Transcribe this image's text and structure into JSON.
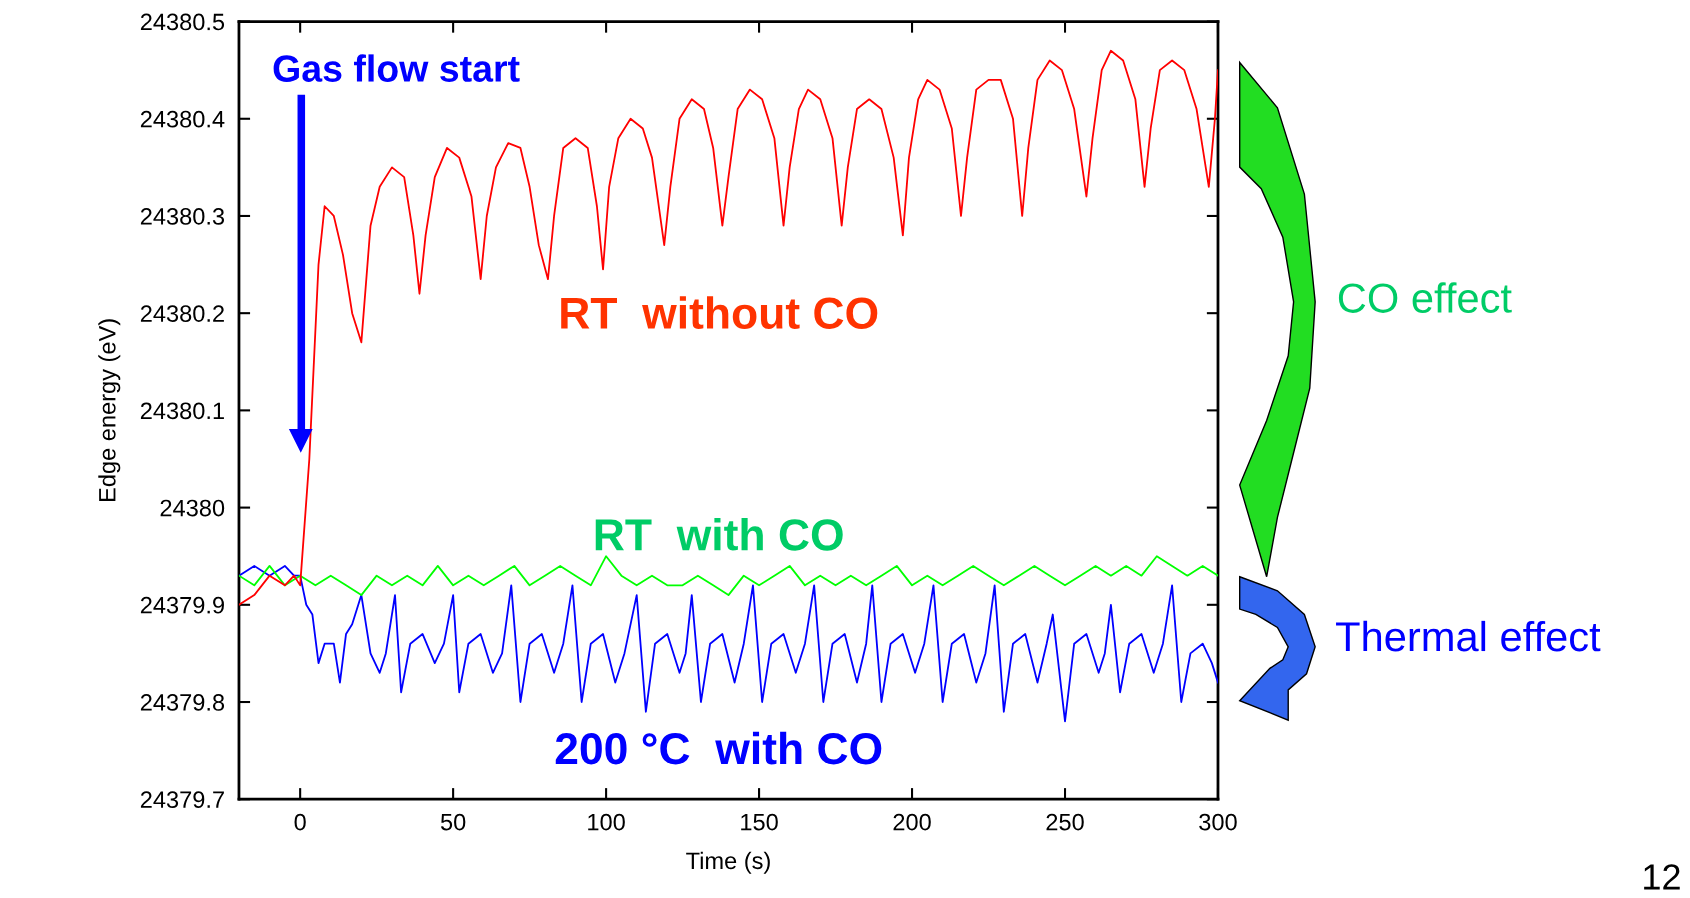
{
  "chart_data": {
    "type": "line",
    "xlabel": "Time (s)",
    "ylabel": "Edge energy (eV)",
    "xlim": [
      -20,
      300
    ],
    "xticks": [
      0,
      50,
      100,
      150,
      200,
      250,
      300
    ],
    "ylim": [
      24379.7,
      24380.5
    ],
    "yticks": [
      24379.7,
      24379.8,
      24379.9,
      24380,
      24380.1,
      24380.2,
      24380.3,
      24380.4,
      24380.5
    ],
    "grid": false,
    "legend": false,
    "marker": "none",
    "line_style": "solid",
    "series": [
      {
        "name": "RT  without CO",
        "color": "#ff0000",
        "x": [
          -20,
          -15,
          -10,
          -5,
          -2,
          0,
          3,
          6,
          8,
          11,
          14,
          17,
          20,
          23,
          26,
          30,
          34,
          37,
          39,
          41,
          44,
          48,
          52,
          56,
          59,
          61,
          64,
          68,
          72,
          75,
          78,
          81,
          83,
          86,
          90,
          94,
          97,
          99,
          101,
          104,
          108,
          112,
          115,
          119,
          121,
          124,
          128,
          132,
          135,
          138,
          140,
          143,
          147,
          151,
          155,
          158,
          160,
          163,
          166,
          170,
          174,
          177,
          179,
          182,
          186,
          190,
          194,
          197,
          199,
          202,
          205,
          209,
          213,
          216,
          218,
          221,
          225,
          229,
          233,
          236,
          238,
          241,
          245,
          249,
          253,
          257,
          259,
          262,
          265,
          269,
          273,
          276,
          278,
          281,
          285,
          289,
          293,
          297,
          299,
          300
        ],
        "values": [
          24379.9,
          24379.91,
          24379.93,
          24379.92,
          24379.93,
          24379.92,
          24380.05,
          24380.25,
          24380.31,
          24380.3,
          24380.26,
          24380.2,
          24380.17,
          24380.29,
          24380.33,
          24380.35,
          24380.34,
          24380.28,
          24380.22,
          24380.28,
          24380.34,
          24380.37,
          24380.36,
          24380.32,
          24380.235,
          24380.3,
          24380.35,
          24380.375,
          24380.37,
          24380.33,
          24380.27,
          24380.235,
          24380.3,
          24380.37,
          24380.38,
          24380.37,
          24380.31,
          24380.245,
          24380.33,
          24380.38,
          24380.4,
          24380.39,
          24380.36,
          24380.27,
          24380.33,
          24380.4,
          24380.42,
          24380.41,
          24380.37,
          24380.29,
          24380.34,
          24380.41,
          24380.43,
          24380.42,
          24380.38,
          24380.29,
          24380.35,
          24380.41,
          24380.43,
          24380.42,
          24380.38,
          24380.29,
          24380.35,
          24380.41,
          24380.42,
          24380.41,
          24380.36,
          24380.28,
          24380.36,
          24380.42,
          24380.44,
          24380.43,
          24380.39,
          24380.3,
          24380.36,
          24380.43,
          24380.44,
          24380.44,
          24380.4,
          24380.3,
          24380.37,
          24380.44,
          24380.46,
          24380.45,
          24380.41,
          24380.32,
          24380.38,
          24380.45,
          24380.47,
          24380.46,
          24380.42,
          24380.33,
          24380.39,
          24380.45,
          24380.46,
          24380.45,
          24380.41,
          24380.33,
          24380.4,
          24380.45
        ]
      },
      {
        "name": "RT  with CO",
        "color": "#00ff00",
        "x": [
          -20,
          -15,
          -10,
          -5,
          0,
          5,
          10,
          15,
          20,
          25,
          30,
          35,
          40,
          45,
          50,
          55,
          60,
          65,
          70,
          75,
          80,
          85,
          90,
          95,
          100,
          105,
          110,
          115,
          120,
          125,
          130,
          135,
          140,
          145,
          150,
          155,
          160,
          165,
          170,
          175,
          180,
          185,
          190,
          195,
          200,
          205,
          210,
          215,
          220,
          225,
          230,
          235,
          240,
          245,
          250,
          255,
          260,
          265,
          270,
          275,
          280,
          285,
          290,
          295,
          300
        ],
        "values": [
          24379.93,
          24379.92,
          24379.94,
          24379.92,
          24379.93,
          24379.92,
          24379.93,
          24379.92,
          24379.91,
          24379.93,
          24379.92,
          24379.93,
          24379.92,
          24379.94,
          24379.92,
          24379.93,
          24379.92,
          24379.93,
          24379.94,
          24379.92,
          24379.93,
          24379.94,
          24379.93,
          24379.92,
          24379.95,
          24379.93,
          24379.92,
          24379.93,
          24379.92,
          24379.92,
          24379.93,
          24379.92,
          24379.91,
          24379.93,
          24379.92,
          24379.93,
          24379.94,
          24379.92,
          24379.93,
          24379.92,
          24379.93,
          24379.92,
          24379.93,
          24379.94,
          24379.92,
          24379.93,
          24379.92,
          24379.93,
          24379.94,
          24379.93,
          24379.92,
          24379.93,
          24379.94,
          24379.93,
          24379.92,
          24379.93,
          24379.94,
          24379.93,
          24379.94,
          24379.93,
          24379.95,
          24379.94,
          24379.93,
          24379.94,
          24379.93
        ]
      },
      {
        "name": "200 °C  with CO",
        "color": "#0000ff",
        "x": [
          -20,
          -15,
          -10,
          -5,
          -2,
          0,
          2,
          4,
          6,
          8,
          11,
          13,
          15,
          17,
          20,
          23,
          26,
          28,
          31,
          33,
          36,
          40,
          44,
          47,
          50,
          52,
          55,
          59,
          63,
          66,
          69,
          72,
          75,
          79,
          83,
          86,
          89,
          92,
          95,
          99,
          103,
          106,
          110,
          113,
          116,
          120,
          124,
          126,
          128,
          131,
          134,
          138,
          142,
          145,
          148,
          151,
          154,
          158,
          162,
          165,
          168,
          171,
          174,
          178,
          182,
          185,
          187,
          190,
          193,
          197,
          201,
          204,
          207,
          210,
          213,
          217,
          221,
          224,
          227,
          230,
          233,
          237,
          241,
          244,
          246,
          250,
          253,
          257,
          261,
          263,
          265,
          268,
          271,
          275,
          279,
          282,
          285,
          288,
          291,
          295,
          298,
          300
        ],
        "values": [
          24379.93,
          24379.94,
          24379.93,
          24379.94,
          24379.93,
          24379.93,
          24379.9,
          24379.89,
          24379.84,
          24379.86,
          24379.86,
          24379.82,
          24379.87,
          24379.88,
          24379.91,
          24379.85,
          24379.83,
          24379.85,
          24379.91,
          24379.81,
          24379.86,
          24379.87,
          24379.84,
          24379.86,
          24379.91,
          24379.81,
          24379.86,
          24379.87,
          24379.83,
          24379.85,
          24379.92,
          24379.8,
          24379.86,
          24379.87,
          24379.83,
          24379.86,
          24379.92,
          24379.8,
          24379.86,
          24379.87,
          24379.82,
          24379.85,
          24379.91,
          24379.79,
          24379.86,
          24379.87,
          24379.83,
          24379.85,
          24379.91,
          24379.8,
          24379.86,
          24379.87,
          24379.82,
          24379.86,
          24379.92,
          24379.8,
          24379.86,
          24379.87,
          24379.83,
          24379.86,
          24379.92,
          24379.8,
          24379.86,
          24379.87,
          24379.82,
          24379.86,
          24379.92,
          24379.8,
          24379.86,
          24379.87,
          24379.83,
          24379.86,
          24379.92,
          24379.8,
          24379.86,
          24379.87,
          24379.82,
          24379.85,
          24379.92,
          24379.79,
          24379.86,
          24379.87,
          24379.82,
          24379.86,
          24379.89,
          24379.78,
          24379.86,
          24379.87,
          24379.83,
          24379.85,
          24379.9,
          24379.81,
          24379.86,
          24379.87,
          24379.83,
          24379.86,
          24379.92,
          24379.8,
          24379.85,
          24379.86,
          24379.84,
          24379.82
        ]
      }
    ],
    "annotations": [
      "Gas flow start",
      "CO effect",
      "Thermal effect",
      "12"
    ]
  }
}
